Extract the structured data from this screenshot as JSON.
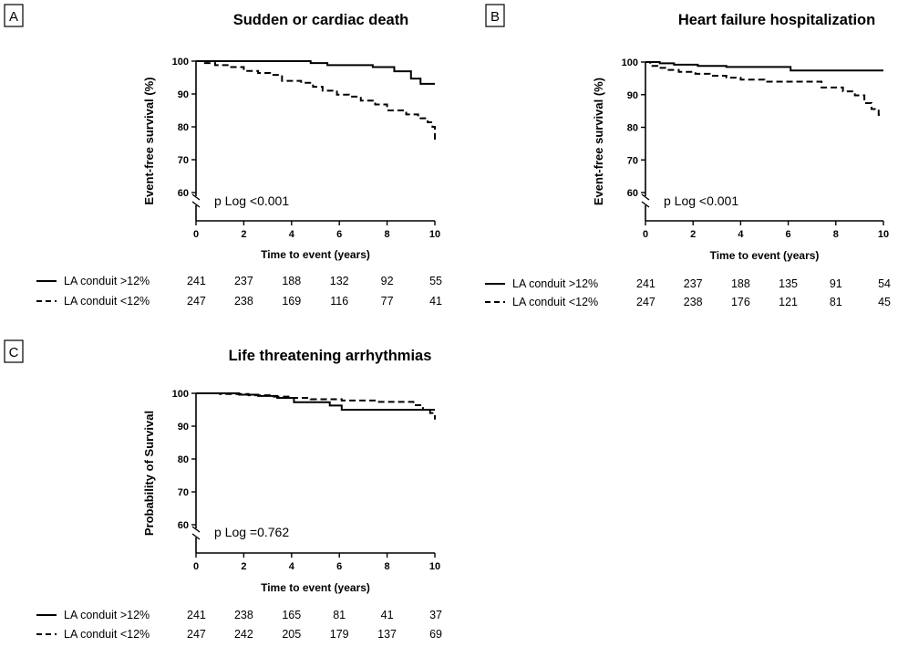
{
  "chart_data": [
    {
      "type": "line",
      "panel_label": "A",
      "title": "Sudden or cardiac death",
      "xlabel": "Time to event (years)",
      "ylabel": "Event-free survival (%)",
      "xlim": [
        0,
        10
      ],
      "ylim": [
        60,
        100
      ],
      "x_ticks": [
        0,
        2,
        4,
        6,
        8,
        10
      ],
      "y_ticks": [
        60,
        70,
        80,
        90,
        100
      ],
      "axis_break": true,
      "annotation": "p Log <0.001",
      "series": [
        {
          "name": "LA conduit >12%",
          "style": "solid",
          "x": [
            0,
            4.8,
            5.5,
            7.4,
            8.3,
            9.0,
            9.4,
            10
          ],
          "y": [
            100,
            99.4,
            98.8,
            98.2,
            96.9,
            94.7,
            93.1,
            93.1
          ]
        },
        {
          "name": "LA conduit <12%",
          "style": "dashed",
          "x": [
            0,
            0.3,
            0.8,
            1.4,
            2.0,
            2.6,
            3.1,
            3.6,
            4.4,
            4.9,
            5.3,
            5.9,
            6.4,
            6.9,
            7.5,
            8.0,
            8.8,
            9.3,
            9.7,
            9.9,
            10
          ],
          "y": [
            100,
            99.4,
            98.8,
            98.2,
            97.0,
            96.4,
            95.8,
            94.0,
            93.4,
            92.2,
            91.0,
            89.8,
            89.2,
            88.0,
            86.8,
            85.0,
            83.8,
            82.6,
            81.4,
            80.0,
            76.0
          ]
        }
      ],
      "risk_table": {
        "x": [
          0,
          2,
          4,
          6,
          8,
          10
        ],
        "rows": [
          {
            "label": "LA conduit >12%",
            "style": "solid",
            "values": [
              241,
              237,
              188,
              132,
              92,
              55
            ]
          },
          {
            "label": "LA conduit <12%",
            "style": "dashed",
            "values": [
              247,
              238,
              169,
              116,
              77,
              41
            ]
          }
        ]
      }
    },
    {
      "type": "line",
      "panel_label": "B",
      "title": "Heart failure hospitalization",
      "xlabel": "Time to event (years)",
      "ylabel": "Event-free survival (%)",
      "xlim": [
        0,
        10
      ],
      "ylim": [
        60,
        100
      ],
      "x_ticks": [
        0,
        2,
        4,
        6,
        8,
        10
      ],
      "y_ticks": [
        60,
        70,
        80,
        90,
        100
      ],
      "axis_break": true,
      "annotation": "p Log <0.001",
      "series": [
        {
          "name": "LA conduit >12%",
          "style": "solid",
          "x": [
            0,
            0.6,
            1.2,
            2.2,
            3.4,
            6.1,
            10
          ],
          "y": [
            100,
            99.6,
            99.2,
            98.8,
            98.5,
            97.4,
            97.4
          ]
        },
        {
          "name": "LA conduit <12%",
          "style": "dashed",
          "x": [
            0,
            0.2,
            0.5,
            0.9,
            1.4,
            2.1,
            2.7,
            3.4,
            4.0,
            5.0,
            6.1,
            7.4,
            8.3,
            8.8,
            9.2,
            9.5,
            9.8,
            10
          ],
          "y": [
            100,
            98.8,
            98.2,
            97.6,
            97.0,
            96.4,
            95.8,
            95.2,
            94.6,
            94.0,
            94.0,
            92.2,
            91.0,
            89.8,
            87.4,
            85.6,
            83.8,
            83.8
          ]
        }
      ],
      "risk_table": {
        "x": [
          0,
          2,
          4,
          6,
          8,
          10
        ],
        "rows": [
          {
            "label": "LA conduit >12%",
            "style": "solid",
            "values": [
              241,
              237,
              188,
              135,
              91,
              54
            ]
          },
          {
            "label": "LA conduit <12%",
            "style": "dashed",
            "values": [
              247,
              238,
              176,
              121,
              81,
              45
            ]
          }
        ]
      }
    },
    {
      "type": "line",
      "panel_label": "C",
      "title": "Life threatening arrhythmias",
      "xlabel": "Time to event (years)",
      "ylabel": "Probability of Survival",
      "xlim": [
        0,
        10
      ],
      "ylim": [
        60,
        100
      ],
      "x_ticks": [
        0,
        2,
        4,
        6,
        8,
        10
      ],
      "y_ticks": [
        60,
        70,
        80,
        90,
        100
      ],
      "axis_break": true,
      "annotation": "p Log =0.762",
      "series": [
        {
          "name": "LA conduit >12%",
          "style": "solid",
          "x": [
            0,
            1.8,
            2.6,
            3.4,
            4.1,
            5.6,
            6.1,
            9.6,
            10
          ],
          "y": [
            100,
            99.6,
            99.2,
            98.6,
            97.3,
            96.3,
            95.0,
            95.0,
            95.0
          ]
        },
        {
          "name": "LA conduit <12%",
          "style": "dashed",
          "x": [
            0,
            1.0,
            2.2,
            3.2,
            4.0,
            4.8,
            6.1,
            7.6,
            9.1,
            9.5,
            9.8,
            10
          ],
          "y": [
            100,
            99.8,
            99.4,
            99.0,
            98.6,
            98.2,
            97.8,
            97.4,
            96.4,
            95.0,
            94.0,
            92.0
          ]
        }
      ],
      "risk_table": {
        "x": [
          0,
          2,
          4,
          6,
          8,
          10
        ],
        "rows": [
          {
            "label": "LA conduit >12%",
            "style": "solid",
            "values": [
              241,
              238,
              165,
              81,
              41,
              37
            ]
          },
          {
            "label": "LA conduit <12%",
            "style": "dashed",
            "values": [
              247,
              242,
              205,
              179,
              137,
              69
            ]
          }
        ]
      }
    }
  ]
}
